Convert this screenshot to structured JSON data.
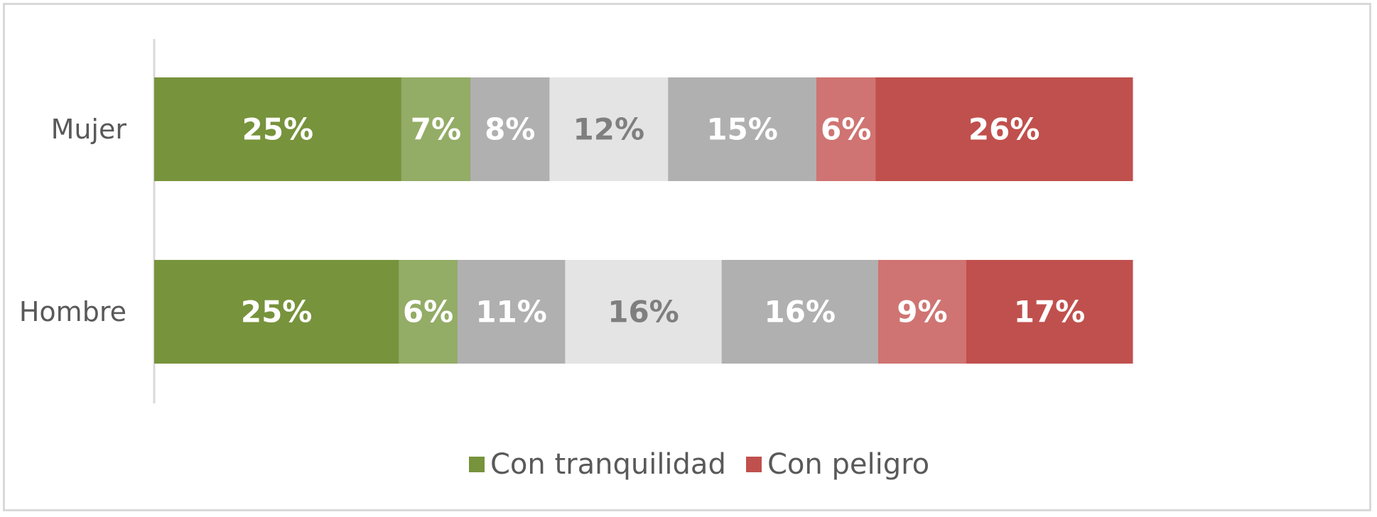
{
  "chart_data": {
    "type": "bar",
    "orientation": "horizontal",
    "stacked": true,
    "categories": [
      "Mujer",
      "Hombre"
    ],
    "segments": [
      {
        "values": [
          25,
          25
        ],
        "labels": [
          "25%",
          "25%"
        ],
        "color": "#77933c",
        "text_color": "#ffffff"
      },
      {
        "values": [
          7,
          6
        ],
        "labels": [
          "7%",
          "6%"
        ],
        "color": "#93ac66",
        "text_color": "#ffffff"
      },
      {
        "values": [
          8,
          11
        ],
        "labels": [
          "8%",
          "11%"
        ],
        "color": "#b0b0b0",
        "text_color": "#ffffff"
      },
      {
        "values": [
          12,
          16
        ],
        "labels": [
          "12%",
          "16%"
        ],
        "color": "#e4e4e4",
        "text_color": "#7f7f7f"
      },
      {
        "values": [
          15,
          16
        ],
        "labels": [
          "15%",
          "16%"
        ],
        "color": "#b0b0b0",
        "text_color": "#ffffff"
      },
      {
        "values": [
          6,
          9
        ],
        "labels": [
          "6%",
          "9%"
        ],
        "color": "#cf7472",
        "text_color": "#ffffff"
      },
      {
        "values": [
          26,
          17
        ],
        "labels": [
          "26%",
          "17%"
        ],
        "color": "#c0504d",
        "text_color": "#ffffff"
      }
    ],
    "legend": {
      "position": "bottom",
      "items": [
        {
          "label": "Con tranquilidad",
          "color": "#77933c"
        },
        {
          "label": "Con peligro",
          "color": "#c0504d"
        }
      ]
    },
    "xlim": [
      0,
      100
    ],
    "grid": false
  }
}
